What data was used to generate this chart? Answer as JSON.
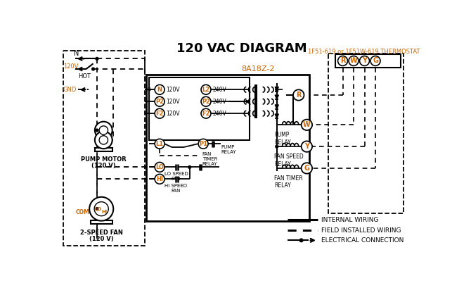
{
  "title": "120 VAC DIAGRAM",
  "bg_color": "#ffffff",
  "text_color": "#000000",
  "orange_color": "#cc6600",
  "thermostat_label": "1F51-619 or 1F51W-619 THERMOSTAT",
  "control_box_label": "8A18Z-2"
}
